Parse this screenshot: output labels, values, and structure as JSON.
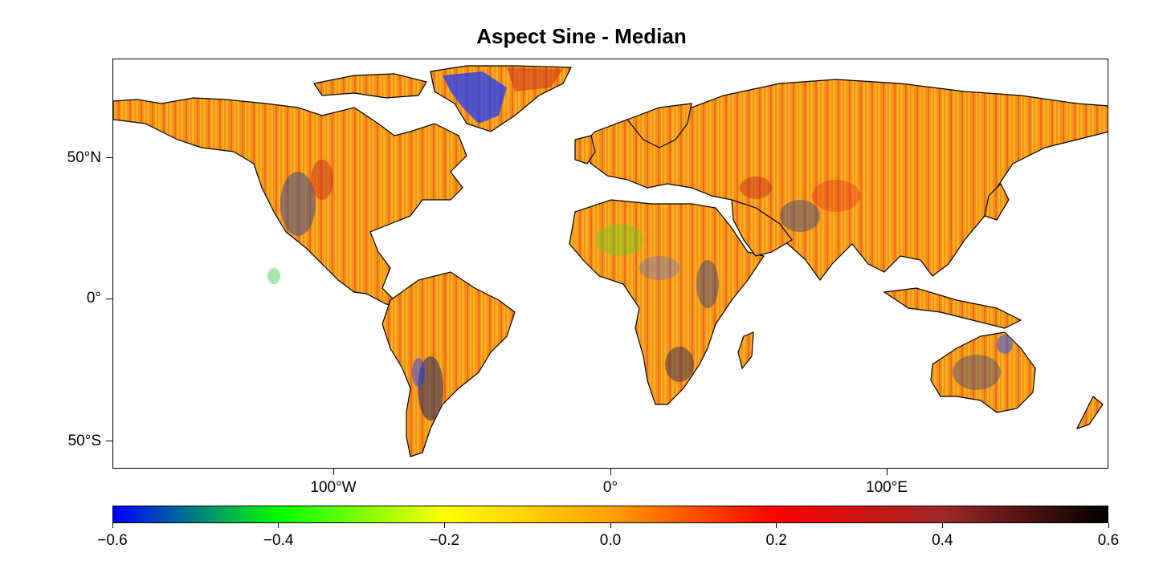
{
  "title": "Aspect Sine - Median",
  "map": {
    "projection": "equirectangular",
    "lon_range": [
      -180,
      180
    ],
    "lat_range": [
      -60,
      84
    ],
    "land_base_color": "#f5921e",
    "ocean_color": "#ffffff",
    "coastline_color": "#000000"
  },
  "axes": {
    "y_ticks": [
      {
        "label": "50°N",
        "lat": 50
      },
      {
        "label": "0°",
        "lat": 0
      },
      {
        "label": "50°S",
        "lat": -50
      }
    ],
    "x_ticks": [
      {
        "label": "100°W",
        "lon": -100
      },
      {
        "label": "0°",
        "lon": 0
      },
      {
        "label": "100°E",
        "lon": 100
      }
    ]
  },
  "colorbar": {
    "min": -0.6,
    "max": 0.6,
    "tick_labels": [
      "−0.6",
      "−0.4",
      "−0.2",
      "0.0",
      "0.2",
      "0.4",
      "0.6"
    ],
    "tick_values": [
      -0.6,
      -0.4,
      -0.2,
      0.0,
      0.2,
      0.4,
      0.6
    ],
    "stops": [
      "#0000ff",
      "#00ff00",
      "#ffff00",
      "#ffa000",
      "#ff0000",
      "#a02828",
      "#000000"
    ]
  }
}
